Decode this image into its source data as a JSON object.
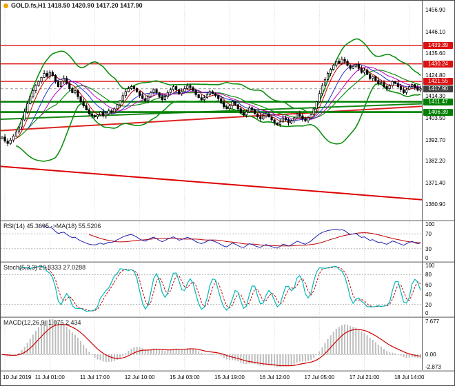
{
  "header": {
    "symbol_line": "GOLD.fs,H1 1418.50 1420.90 1417.20 1417.90"
  },
  "panels": {
    "rsi": {
      "label": "RSI(14) 45.3695  ->MA(18) 55.5206",
      "ticks": [
        100,
        70,
        30,
        0
      ],
      "levels": [
        70,
        30
      ]
    },
    "stoch": {
      "label": "Stoch(5,3,3) 20.8333 27.0288",
      "ticks": [
        100,
        80,
        60,
        40,
        20,
        0
      ],
      "levels": [
        80,
        20
      ]
    },
    "macd": {
      "label": "MACD(12,26,9) 1.075 2.434",
      "ticks": [
        {
          "label": "7.677",
          "value": 7.677
        },
        {
          "label": "0.00",
          "value": 0
        },
        {
          "label": "-2.873",
          "value": -2.873
        }
      ]
    }
  },
  "time_axis": [
    "10 Jul 2019",
    "11 Jul 01:00",
    "11 Jul 17:00",
    "12 Jul 10:00",
    "15 Jul 03:00",
    "15 Jul 19:00",
    "16 Jul 12:00",
    "17 Jul 05:00",
    "17 Jul 21:00",
    "18 Jul 14:00"
  ],
  "colors": {
    "resistance": "#dd1111",
    "support": "#007f00",
    "current": "#404040",
    "bollinger": "#0e8f0e",
    "ma_red": "#cc0000",
    "ma_blue": "#2233cc",
    "ma_magenta": "#bb00bb",
    "rsi_line": "#2020b0",
    "rsi_ma": "#c00000",
    "stoch_k": "#00b8b8",
    "stoch_d": "#cc0000",
    "macd_hist": "#bdbdbd",
    "macd_signal": "#cc0000",
    "candle_up": "#ffffff",
    "candle_down": "#000000",
    "candle_stroke": "#000000",
    "grid": "#d9d9d9"
  },
  "chart_data": {
    "type": "candlestick",
    "symbol": "GOLD.fs",
    "timeframe": "H1",
    "ohlc_current": {
      "open": "1418.50",
      "high": "1420.90",
      "low": "1417.20",
      "close": "1417.90"
    },
    "y_ticks": [
      1456.9,
      1446.1,
      1435.6,
      1424.8,
      1414.3,
      1403.5,
      1392.7,
      1382.2,
      1371.4,
      1360.9
    ],
    "y_range": [
      1353.0,
      1461.5
    ],
    "closes": [
      1394.0,
      1392.0,
      1390.8,
      1392.5,
      1394.5,
      1396.5,
      1399.0,
      1402.5,
      1406.5,
      1410.5,
      1414.0,
      1417.0,
      1419.5,
      1421.5,
      1423.5,
      1425.5,
      1424.0,
      1426.0,
      1424.5,
      1421.5,
      1419.0,
      1421.5,
      1423.0,
      1420.5,
      1418.0,
      1416.0,
      1417.0,
      1414.0,
      1411.5,
      1409.5,
      1407.5,
      1405.5,
      1404.5,
      1404.0,
      1405.0,
      1406.5,
      1404.5,
      1405.5,
      1407.0,
      1406.5,
      1408.0,
      1410.0,
      1412.0,
      1414.5,
      1416.5,
      1418.0,
      1419.0,
      1418.0,
      1416.5,
      1414.5,
      1413.0,
      1412.0,
      1414.0,
      1416.0,
      1417.5,
      1416.0,
      1414.0,
      1412.5,
      1414.0,
      1416.0,
      1417.5,
      1419.0,
      1417.5,
      1415.5,
      1416.5,
      1418.0,
      1419.5,
      1418.5,
      1417.0,
      1415.0,
      1413.5,
      1412.5,
      1413.5,
      1415.0,
      1416.5,
      1415.5,
      1414.5,
      1413.0,
      1411.0,
      1409.0,
      1408.0,
      1409.5,
      1411.5,
      1410.0,
      1408.0,
      1406.0,
      1405.0,
      1406.5,
      1408.5,
      1407.5,
      1405.5,
      1404.0,
      1403.0,
      1404.5,
      1405.5,
      1404.0,
      1402.5,
      1401.0,
      1400.2,
      1401.5,
      1403.5,
      1402.5,
      1401.0,
      1402.0,
      1403.5,
      1405.5,
      1404.5,
      1403.0,
      1402.0,
      1403.5,
      1405.0,
      1408.0,
      1411.5,
      1415.5,
      1419.5,
      1422.5,
      1425.5,
      1427.5,
      1429.5,
      1431.5,
      1430.5,
      1432.5,
      1431.5,
      1429.5,
      1428.0,
      1429.0,
      1430.0,
      1428.0,
      1426.0,
      1427.0,
      1425.0,
      1423.0,
      1424.0,
      1422.0,
      1420.5,
      1421.0,
      1419.0,
      1418.0,
      1419.5,
      1421.5,
      1420.5,
      1419.0,
      1417.5,
      1416.0,
      1417.5,
      1419.0,
      1420.0,
      1418.5,
      1417.2,
      1417.9
    ],
    "levels": {
      "resistance": [
        1439.39,
        1430.24,
        1421.55
      ],
      "support": [
        1411.47,
        1406.39
      ],
      "current_price": 1417.9
    },
    "trendlines": [
      {
        "name": "descending-trendline",
        "color": "#dd0000",
        "width": 2,
        "p1": 1379.5,
        "p2": 1363.0
      },
      {
        "name": "rising-red-ma-line",
        "color": "#dd2222",
        "width": 2,
        "p1": 1397.2,
        "p2": 1409.2
      },
      {
        "name": "rising-green-ma-line",
        "color": "#118811",
        "width": 2,
        "p1": 1402.8,
        "p2": 1410.5
      }
    ],
    "indicators": {
      "bollinger": {
        "period": 20,
        "deviation": 2
      },
      "rsi": {
        "period": 14,
        "ma_period": 18,
        "value": 45.3695,
        "ma_value": 55.5206
      },
      "stoch": {
        "k": 5,
        "slowing": 3,
        "d": 3,
        "value": 20.8333,
        "signal": 27.0288
      },
      "macd": {
        "fast": 12,
        "slow": 26,
        "signal": 9,
        "value": 1.075,
        "signal_value": 2.434
      }
    },
    "grid_tick_indices": [
      1,
      17,
      33,
      49,
      65,
      81,
      97,
      113,
      129,
      145
    ]
  }
}
